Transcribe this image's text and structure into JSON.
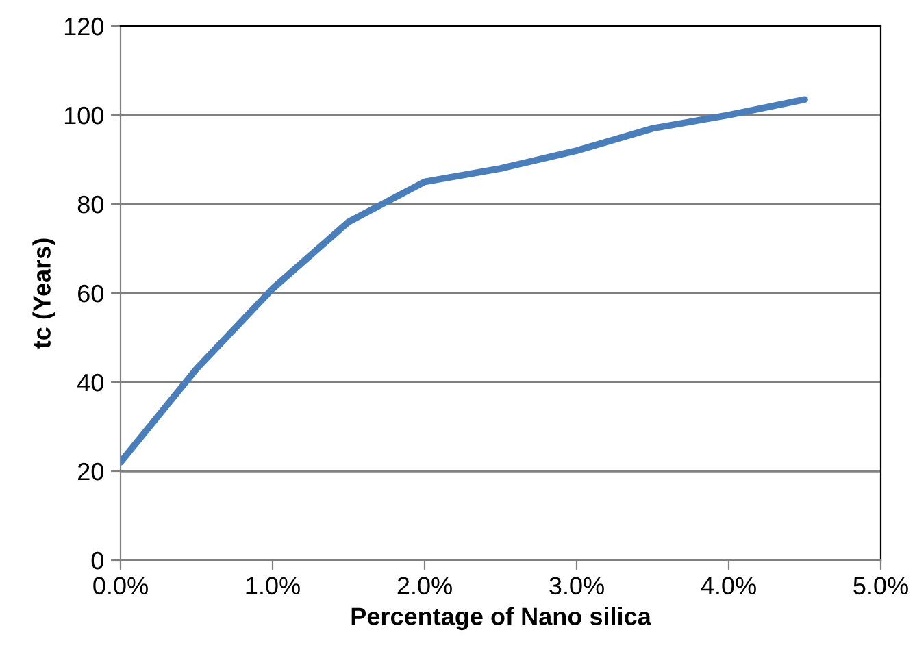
{
  "chart_data": {
    "type": "line",
    "xlabel": "Percentage of Nano silica",
    "ylabel": "tc (Years)",
    "x": [
      0,
      0.5,
      1,
      1.5,
      2,
      2.5,
      3,
      3.5,
      4,
      4.5
    ],
    "series": [
      {
        "color": "#4a7ebb",
        "values": [
          22,
          43,
          61,
          76,
          85,
          88,
          92,
          97,
          100,
          103.5
        ]
      }
    ],
    "xlim": [
      0,
      5
    ],
    "xticks": [
      {
        "value": 0,
        "label": "0.0%"
      },
      {
        "value": 1,
        "label": "1.0%"
      },
      {
        "value": 2,
        "label": "2.0%"
      },
      {
        "value": 3,
        "label": "3.0%"
      },
      {
        "value": 4,
        "label": "4.0%"
      },
      {
        "value": 5,
        "label": "5.0%"
      }
    ],
    "ylim": [
      0,
      120
    ],
    "yticks": [
      0,
      20,
      40,
      60,
      80,
      100,
      120
    ],
    "grid": "y",
    "legend": false,
    "marker": "none",
    "line_style": "solid"
  }
}
